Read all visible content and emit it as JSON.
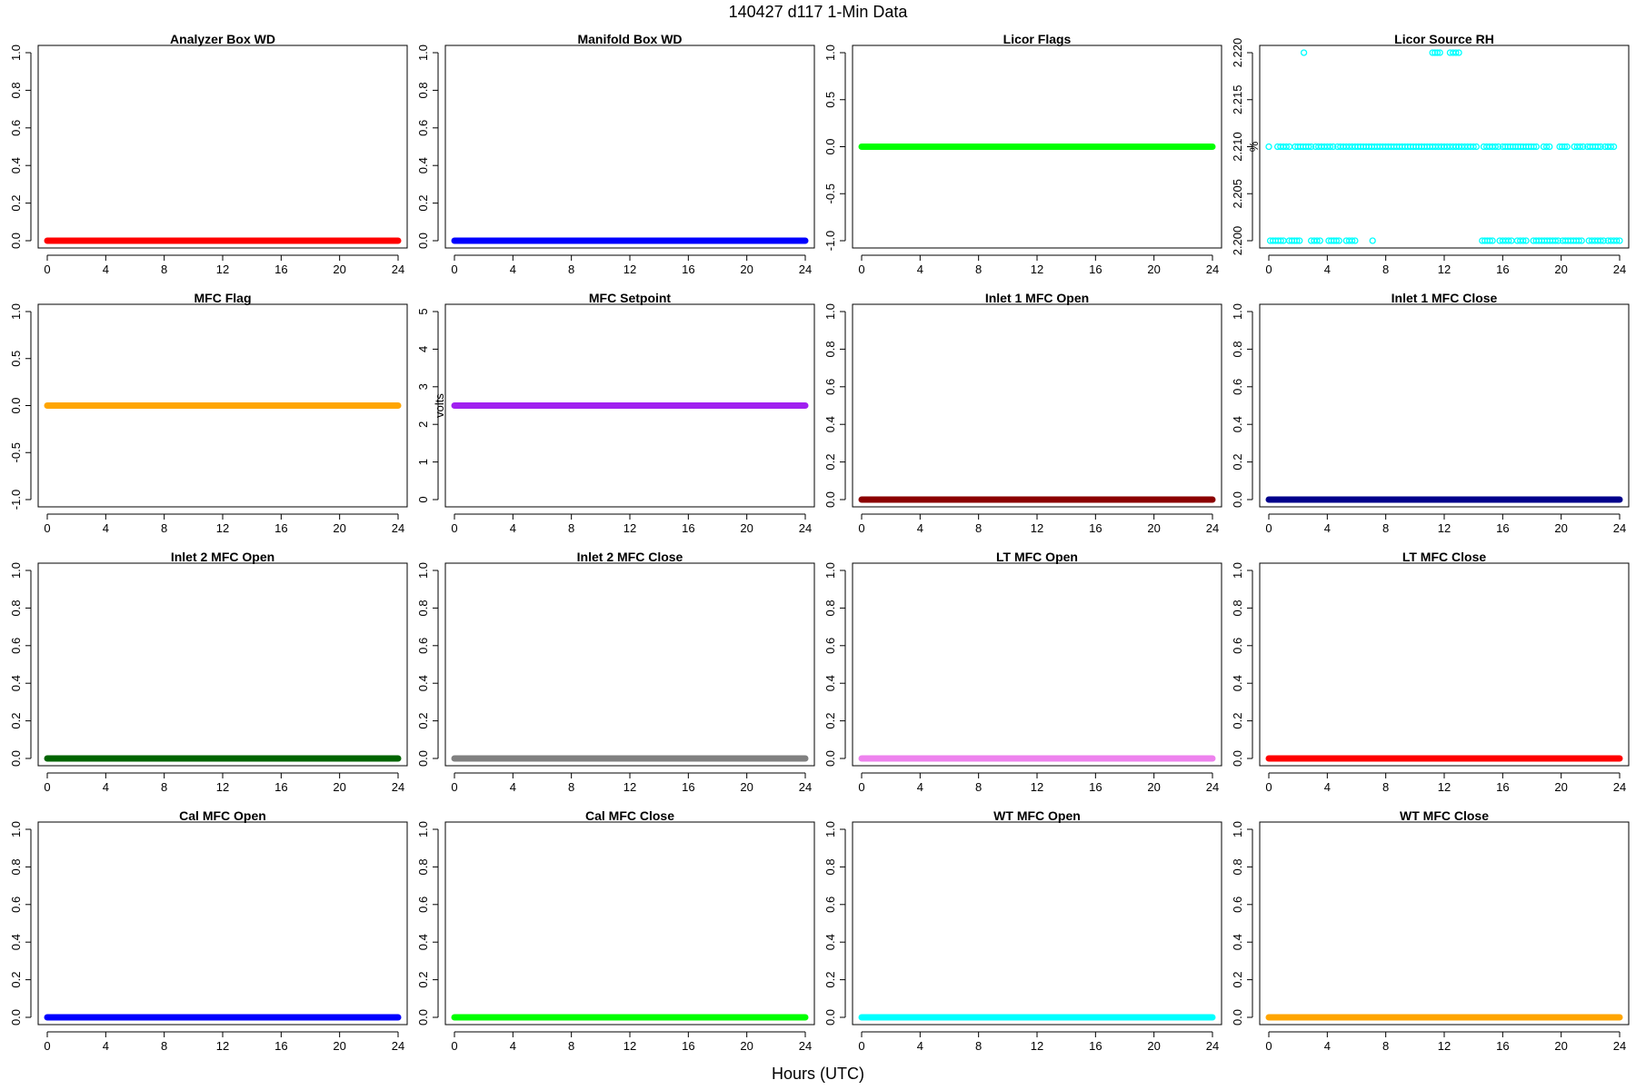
{
  "figure": {
    "title": "140427   d117   1-Min Data",
    "xlabel": "Hours (UTC)"
  },
  "chart_data": [
    {
      "type": "scatter",
      "title": "Analyzer Box WD",
      "xlabel": "",
      "ylabel": "",
      "xlim": [
        0,
        24
      ],
      "ylim": [
        0,
        1
      ],
      "xticks": [
        "0",
        "4",
        "8",
        "12",
        "16",
        "20",
        "24"
      ],
      "yticks": [
        "0.0",
        "0.2",
        "0.4",
        "0.6",
        "0.8",
        "1.0"
      ],
      "series": [
        {
          "color": "#ff0000",
          "x": [
            0,
            24
          ],
          "y": [
            0,
            0
          ],
          "dense": true
        }
      ]
    },
    {
      "type": "scatter",
      "title": "Manifold Box WD",
      "xlabel": "",
      "ylabel": "",
      "xlim": [
        0,
        24
      ],
      "ylim": [
        0,
        1
      ],
      "xticks": [
        "0",
        "4",
        "8",
        "12",
        "16",
        "20",
        "24"
      ],
      "yticks": [
        "0.0",
        "0.2",
        "0.4",
        "0.6",
        "0.8",
        "1.0"
      ],
      "series": [
        {
          "color": "#0000ff",
          "x": [
            0,
            24
          ],
          "y": [
            0,
            0
          ],
          "dense": true
        }
      ]
    },
    {
      "type": "scatter",
      "title": "Licor Flags",
      "xlabel": "",
      "ylabel": "",
      "xlim": [
        0,
        24
      ],
      "ylim": [
        -1,
        1
      ],
      "xticks": [
        "0",
        "4",
        "8",
        "12",
        "16",
        "20",
        "24"
      ],
      "yticks": [
        "-1.0",
        "-0.5",
        "0.0",
        "0.5",
        "1.0"
      ],
      "series": [
        {
          "color": "#00ff00",
          "x": [
            0,
            24
          ],
          "y": [
            0,
            0
          ],
          "dense": true
        }
      ]
    },
    {
      "type": "scatter",
      "title": "Licor Source RH",
      "xlabel": "",
      "ylabel": "%",
      "xlim": [
        0,
        24
      ],
      "ylim": [
        2.2,
        2.22
      ],
      "xticks": [
        "0",
        "4",
        "8",
        "12",
        "16",
        "20",
        "24"
      ],
      "yticks": [
        "2.200",
        "2.205",
        "2.210",
        "2.215",
        "2.220"
      ],
      "series": [
        {
          "color": "#00ffff",
          "dense": false,
          "runs": [
            {
              "y": 2.21,
              "x_start": 0.0,
              "x_end": 0.0
            },
            {
              "y": 2.21,
              "x_start": 0.6,
              "x_end": 1.4
            },
            {
              "y": 2.21,
              "x_start": 1.8,
              "x_end": 2.9
            },
            {
              "y": 2.21,
              "x_start": 3.2,
              "x_end": 4.4
            },
            {
              "y": 2.21,
              "x_start": 4.7,
              "x_end": 5.7
            },
            {
              "y": 2.21,
              "x_start": 5.9,
              "x_end": 11.4
            },
            {
              "y": 2.21,
              "x_start": 11.6,
              "x_end": 12.8
            },
            {
              "y": 2.21,
              "x_start": 13.0,
              "x_end": 14.2
            },
            {
              "y": 2.21,
              "x_start": 14.7,
              "x_end": 15.7
            },
            {
              "y": 2.21,
              "x_start": 16.0,
              "x_end": 17.4
            },
            {
              "y": 2.21,
              "x_start": 17.6,
              "x_end": 18.3
            },
            {
              "y": 2.21,
              "x_start": 18.8,
              "x_end": 19.2
            },
            {
              "y": 2.21,
              "x_start": 19.9,
              "x_end": 20.4
            },
            {
              "y": 2.21,
              "x_start": 20.9,
              "x_end": 21.5
            },
            {
              "y": 2.21,
              "x_start": 21.8,
              "x_end": 22.7
            },
            {
              "y": 2.21,
              "x_start": 23.0,
              "x_end": 23.6
            },
            {
              "y": 2.2,
              "x_start": 0.1,
              "x_end": 1.0
            },
            {
              "y": 2.2,
              "x_start": 1.4,
              "x_end": 2.1
            },
            {
              "y": 2.2,
              "x_start": 2.9,
              "x_end": 3.5
            },
            {
              "y": 2.2,
              "x_start": 4.1,
              "x_end": 4.8
            },
            {
              "y": 2.2,
              "x_start": 5.3,
              "x_end": 5.9
            },
            {
              "y": 2.2,
              "x_start": 7.1,
              "x_end": 7.1
            },
            {
              "y": 2.2,
              "x_start": 14.6,
              "x_end": 15.3
            },
            {
              "y": 2.2,
              "x_start": 15.8,
              "x_end": 16.6
            },
            {
              "y": 2.2,
              "x_start": 17.0,
              "x_end": 17.6
            },
            {
              "y": 2.2,
              "x_start": 18.1,
              "x_end": 19.8
            },
            {
              "y": 2.2,
              "x_start": 20.1,
              "x_end": 21.4
            },
            {
              "y": 2.2,
              "x_start": 21.9,
              "x_end": 22.9
            },
            {
              "y": 2.2,
              "x_start": 23.2,
              "x_end": 24.0
            },
            {
              "y": 2.22,
              "x_start": 2.4,
              "x_end": 2.4
            },
            {
              "y": 2.22,
              "x_start": 11.2,
              "x_end": 11.7
            },
            {
              "y": 2.22,
              "x_start": 12.4,
              "x_end": 13.0
            }
          ]
        }
      ]
    },
    {
      "type": "scatter",
      "title": "MFC Flag",
      "xlabel": "",
      "ylabel": "",
      "xlim": [
        0,
        24
      ],
      "ylim": [
        -1,
        1
      ],
      "xticks": [
        "0",
        "4",
        "8",
        "12",
        "16",
        "20",
        "24"
      ],
      "yticks": [
        "-1.0",
        "-0.5",
        "0.0",
        "0.5",
        "1.0"
      ],
      "series": [
        {
          "color": "#ffa500",
          "x": [
            0,
            24
          ],
          "y": [
            0,
            0
          ],
          "dense": true
        }
      ]
    },
    {
      "type": "scatter",
      "title": "MFC Setpoint",
      "xlabel": "",
      "ylabel": "volts",
      "xlim": [
        0,
        24
      ],
      "ylim": [
        0,
        5
      ],
      "xticks": [
        "0",
        "4",
        "8",
        "12",
        "16",
        "20",
        "24"
      ],
      "yticks": [
        "0",
        "1",
        "2",
        "3",
        "4",
        "5"
      ],
      "series": [
        {
          "color": "#a020f0",
          "x": [
            0,
            24
          ],
          "y": [
            2.5,
            2.5
          ],
          "dense": true
        }
      ]
    },
    {
      "type": "scatter",
      "title": "Inlet 1 MFC Open",
      "xlabel": "",
      "ylabel": "",
      "xlim": [
        0,
        24
      ],
      "ylim": [
        0,
        1
      ],
      "xticks": [
        "0",
        "4",
        "8",
        "12",
        "16",
        "20",
        "24"
      ],
      "yticks": [
        "0.0",
        "0.2",
        "0.4",
        "0.6",
        "0.8",
        "1.0"
      ],
      "series": [
        {
          "color": "#8b0000",
          "x": [
            0,
            24
          ],
          "y": [
            0,
            0
          ],
          "dense": true
        }
      ]
    },
    {
      "type": "scatter",
      "title": "Inlet 1 MFC Close",
      "xlabel": "",
      "ylabel": "",
      "xlim": [
        0,
        24
      ],
      "ylim": [
        0,
        1
      ],
      "xticks": [
        "0",
        "4",
        "8",
        "12",
        "16",
        "20",
        "24"
      ],
      "yticks": [
        "0.0",
        "0.2",
        "0.4",
        "0.6",
        "0.8",
        "1.0"
      ],
      "series": [
        {
          "color": "#00008b",
          "x": [
            0,
            24
          ],
          "y": [
            0,
            0
          ],
          "dense": true
        }
      ]
    },
    {
      "type": "scatter",
      "title": "Inlet 2 MFC Open",
      "xlabel": "",
      "ylabel": "",
      "xlim": [
        0,
        24
      ],
      "ylim": [
        0,
        1
      ],
      "xticks": [
        "0",
        "4",
        "8",
        "12",
        "16",
        "20",
        "24"
      ],
      "yticks": [
        "0.0",
        "0.2",
        "0.4",
        "0.6",
        "0.8",
        "1.0"
      ],
      "series": [
        {
          "color": "#006400",
          "x": [
            0,
            24
          ],
          "y": [
            0,
            0
          ],
          "dense": true
        }
      ]
    },
    {
      "type": "scatter",
      "title": "Inlet 2 MFC Close",
      "xlabel": "",
      "ylabel": "",
      "xlim": [
        0,
        24
      ],
      "ylim": [
        0,
        1
      ],
      "xticks": [
        "0",
        "4",
        "8",
        "12",
        "16",
        "20",
        "24"
      ],
      "yticks": [
        "0.0",
        "0.2",
        "0.4",
        "0.6",
        "0.8",
        "1.0"
      ],
      "series": [
        {
          "color": "#808080",
          "x": [
            0,
            24
          ],
          "y": [
            0,
            0
          ],
          "dense": true
        }
      ]
    },
    {
      "type": "scatter",
      "title": "LT MFC Open",
      "xlabel": "",
      "ylabel": "",
      "xlim": [
        0,
        24
      ],
      "ylim": [
        0,
        1
      ],
      "xticks": [
        "0",
        "4",
        "8",
        "12",
        "16",
        "20",
        "24"
      ],
      "yticks": [
        "0.0",
        "0.2",
        "0.4",
        "0.6",
        "0.8",
        "1.0"
      ],
      "series": [
        {
          "color": "#ee82ee",
          "x": [
            0,
            24
          ],
          "y": [
            0,
            0
          ],
          "dense": true
        }
      ]
    },
    {
      "type": "scatter",
      "title": "LT MFC Close",
      "xlabel": "",
      "ylabel": "",
      "xlim": [
        0,
        24
      ],
      "ylim": [
        0,
        1
      ],
      "xticks": [
        "0",
        "4",
        "8",
        "12",
        "16",
        "20",
        "24"
      ],
      "yticks": [
        "0.0",
        "0.2",
        "0.4",
        "0.6",
        "0.8",
        "1.0"
      ],
      "series": [
        {
          "color": "#ff0000",
          "x": [
            0,
            24
          ],
          "y": [
            0,
            0
          ],
          "dense": true
        }
      ]
    },
    {
      "type": "scatter",
      "title": "Cal MFC Open",
      "xlabel": "",
      "ylabel": "",
      "xlim": [
        0,
        24
      ],
      "ylim": [
        0,
        1
      ],
      "xticks": [
        "0",
        "4",
        "8",
        "12",
        "16",
        "20",
        "24"
      ],
      "yticks": [
        "0.0",
        "0.2",
        "0.4",
        "0.6",
        "0.8",
        "1.0"
      ],
      "series": [
        {
          "color": "#0000ff",
          "x": [
            0,
            24
          ],
          "y": [
            0,
            0
          ],
          "dense": true
        }
      ]
    },
    {
      "type": "scatter",
      "title": "Cal MFC Close",
      "xlabel": "",
      "ylabel": "",
      "xlim": [
        0,
        24
      ],
      "ylim": [
        0,
        1
      ],
      "xticks": [
        "0",
        "4",
        "8",
        "12",
        "16",
        "20",
        "24"
      ],
      "yticks": [
        "0.0",
        "0.2",
        "0.4",
        "0.6",
        "0.8",
        "1.0"
      ],
      "series": [
        {
          "color": "#00ff00",
          "x": [
            0,
            24
          ],
          "y": [
            0,
            0
          ],
          "dense": true
        }
      ]
    },
    {
      "type": "scatter",
      "title": "WT MFC Open",
      "xlabel": "",
      "ylabel": "",
      "xlim": [
        0,
        24
      ],
      "ylim": [
        0,
        1
      ],
      "xticks": [
        "0",
        "4",
        "8",
        "12",
        "16",
        "20",
        "24"
      ],
      "yticks": [
        "0.0",
        "0.2",
        "0.4",
        "0.6",
        "0.8",
        "1.0"
      ],
      "series": [
        {
          "color": "#00ffff",
          "x": [
            0,
            24
          ],
          "y": [
            0,
            0
          ],
          "dense": true
        }
      ]
    },
    {
      "type": "scatter",
      "title": "WT MFC Close",
      "xlabel": "",
      "ylabel": "",
      "xlim": [
        0,
        24
      ],
      "ylim": [
        0,
        1
      ],
      "xticks": [
        "0",
        "4",
        "8",
        "12",
        "16",
        "20",
        "24"
      ],
      "yticks": [
        "0.0",
        "0.2",
        "0.4",
        "0.6",
        "0.8",
        "1.0"
      ],
      "series": [
        {
          "color": "#ffa500",
          "x": [
            0,
            24
          ],
          "y": [
            0,
            0
          ],
          "dense": true
        }
      ]
    }
  ]
}
